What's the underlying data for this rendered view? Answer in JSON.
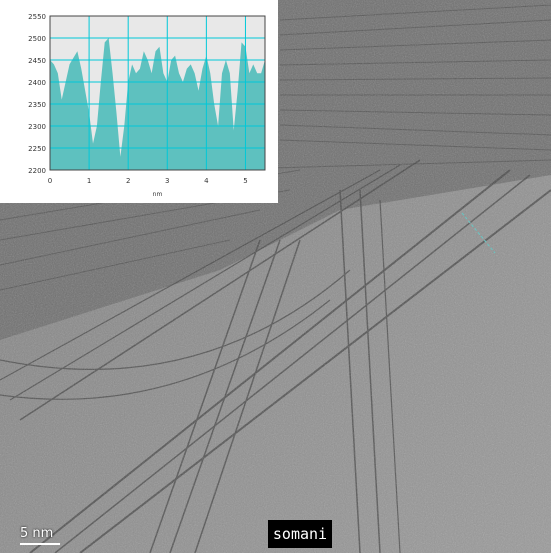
{
  "image": {
    "description_color": "#8f8f8f"
  },
  "inset_chart": {
    "y_tick_labels": [
      "2550",
      "2500",
      "2450",
      "2400",
      "2350",
      "2300",
      "2250",
      "2200"
    ],
    "x_tick_labels": [
      "0",
      "1",
      "2",
      "3",
      "4",
      "5"
    ],
    "xlabel": "nm",
    "fill_color": "#5ec1bf",
    "grid_color": "#00c8d8"
  },
  "chart_data": {
    "type": "area",
    "title": "",
    "xlabel": "nm",
    "ylabel": "",
    "xlim": [
      0,
      5.5
    ],
    "ylim": [
      2200,
      2550
    ],
    "grid": true,
    "x": [
      0.0,
      0.1,
      0.2,
      0.3,
      0.4,
      0.5,
      0.6,
      0.7,
      0.8,
      0.9,
      1.0,
      1.1,
      1.2,
      1.3,
      1.4,
      1.5,
      1.6,
      1.7,
      1.8,
      1.9,
      2.0,
      2.1,
      2.2,
      2.3,
      2.4,
      2.5,
      2.6,
      2.7,
      2.8,
      2.9,
      3.0,
      3.1,
      3.2,
      3.3,
      3.4,
      3.5,
      3.6,
      3.7,
      3.8,
      3.9,
      4.0,
      4.1,
      4.2,
      4.3,
      4.4,
      4.5,
      4.6,
      4.7,
      4.8,
      4.9,
      5.0,
      5.1,
      5.2,
      5.3,
      5.4,
      5.5
    ],
    "values": [
      2450,
      2440,
      2420,
      2360,
      2400,
      2440,
      2455,
      2470,
      2430,
      2380,
      2330,
      2260,
      2300,
      2400,
      2490,
      2500,
      2420,
      2330,
      2230,
      2300,
      2400,
      2440,
      2420,
      2430,
      2470,
      2450,
      2420,
      2470,
      2480,
      2420,
      2400,
      2450,
      2460,
      2420,
      2400,
      2430,
      2440,
      2420,
      2380,
      2430,
      2460,
      2420,
      2350,
      2300,
      2420,
      2450,
      2420,
      2290,
      2380,
      2490,
      2480,
      2420,
      2440,
      2420,
      2420,
      2450
    ],
    "x_ticks": [
      0,
      1,
      2,
      3,
      4,
      5
    ],
    "y_ticks": [
      2200,
      2250,
      2300,
      2350,
      2400,
      2450,
      2500,
      2550
    ]
  },
  "scale_bar": {
    "label": "5 nm"
  },
  "watermark": {
    "text": "somani"
  }
}
